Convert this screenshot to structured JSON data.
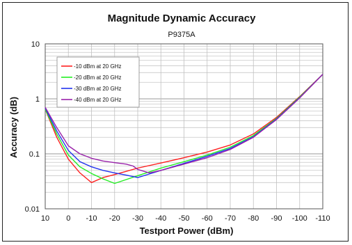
{
  "chart_data": {
    "type": "line",
    "title": "Magnitude Dynamic Accuracy",
    "subtitle": "P9375A",
    "xlabel": "Testport Power (dBm)",
    "ylabel": "Accuracy (dB)",
    "x_ticks": [
      10,
      0,
      -10,
      -20,
      -30,
      -40,
      -50,
      -60,
      -70,
      -80,
      -90,
      -100,
      -110
    ],
    "xlim": [
      10,
      -110
    ],
    "y_scale": "log",
    "ylim": [
      0.01,
      10
    ],
    "y_ticks": [
      10,
      1,
      0.1,
      0.01
    ],
    "y_tick_labels": [
      "10",
      "1",
      "0.1",
      "0.01"
    ],
    "grid": true,
    "legend_position": "top-left",
    "series": [
      {
        "name": "-10 dBm at 20 GHz",
        "color": "#ff2020",
        "points": [
          [
            10,
            0.65
          ],
          [
            5,
            0.2
          ],
          [
            0,
            0.08
          ],
          [
            -5,
            0.045
          ],
          [
            -10,
            0.03
          ],
          [
            -15,
            0.037
          ],
          [
            -20,
            0.042
          ],
          [
            -25,
            0.048
          ],
          [
            -30,
            0.055
          ],
          [
            -40,
            0.068
          ],
          [
            -50,
            0.085
          ],
          [
            -60,
            0.108
          ],
          [
            -70,
            0.145
          ],
          [
            -80,
            0.23
          ],
          [
            -90,
            0.46
          ],
          [
            -100,
            1.1
          ],
          [
            -110,
            2.8
          ]
        ]
      },
      {
        "name": "-20 dBm at 20 GHz",
        "color": "#22ee22",
        "points": [
          [
            10,
            0.65
          ],
          [
            5,
            0.23
          ],
          [
            0,
            0.095
          ],
          [
            -5,
            0.058
          ],
          [
            -10,
            0.044
          ],
          [
            -15,
            0.035
          ],
          [
            -20,
            0.029
          ],
          [
            -25,
            0.034
          ],
          [
            -30,
            0.04
          ],
          [
            -40,
            0.055
          ],
          [
            -50,
            0.072
          ],
          [
            -60,
            0.095
          ],
          [
            -70,
            0.132
          ],
          [
            -80,
            0.215
          ],
          [
            -90,
            0.44
          ],
          [
            -100,
            1.08
          ],
          [
            -110,
            2.8
          ]
        ]
      },
      {
        "name": "-30 dBm at 20 GHz",
        "color": "#2233ee",
        "points": [
          [
            10,
            0.68
          ],
          [
            5,
            0.26
          ],
          [
            0,
            0.115
          ],
          [
            -5,
            0.072
          ],
          [
            -10,
            0.058
          ],
          [
            -15,
            0.05
          ],
          [
            -20,
            0.045
          ],
          [
            -25,
            0.041
          ],
          [
            -30,
            0.037
          ],
          [
            -35,
            0.043
          ],
          [
            -40,
            0.05
          ],
          [
            -50,
            0.067
          ],
          [
            -60,
            0.09
          ],
          [
            -70,
            0.125
          ],
          [
            -80,
            0.205
          ],
          [
            -90,
            0.43
          ],
          [
            -100,
            1.05
          ],
          [
            -110,
            2.8
          ]
        ]
      },
      {
        "name": "-40 dBm at 20 GHz",
        "color": "#9922aa",
        "points": [
          [
            10,
            0.7
          ],
          [
            5,
            0.3
          ],
          [
            0,
            0.14
          ],
          [
            -5,
            0.1
          ],
          [
            -10,
            0.083
          ],
          [
            -15,
            0.074
          ],
          [
            -20,
            0.069
          ],
          [
            -25,
            0.065
          ],
          [
            -28,
            0.06
          ],
          [
            -30,
            0.052
          ],
          [
            -35,
            0.045
          ],
          [
            -40,
            0.05
          ],
          [
            -50,
            0.065
          ],
          [
            -60,
            0.085
          ],
          [
            -70,
            0.12
          ],
          [
            -80,
            0.2
          ],
          [
            -90,
            0.42
          ],
          [
            -100,
            1.04
          ],
          [
            -110,
            2.8
          ]
        ]
      }
    ]
  }
}
